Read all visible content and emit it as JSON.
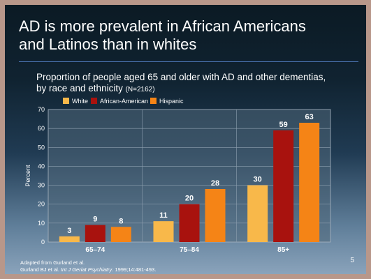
{
  "slide": {
    "title": "AD is more prevalent in African Americans\nand Latinos than in whites",
    "subtitle": "Proportion of people aged 65 and older with AD and other dementias,\nby race and ethnicity ",
    "subtitle_note": "(N=2162)",
    "footnote_1": "Adapted from Gurland et al.",
    "footnote_2_prefix": "Gurland BJ et al. ",
    "footnote_2_journal": "Int J Geriat Psychiatry",
    "footnote_2_suffix": ". 1999;14:481-493.",
    "slide_number": "5"
  },
  "chart_data": {
    "type": "bar",
    "categories": [
      "65–74",
      "75–84",
      "85+"
    ],
    "series": [
      {
        "name": "White",
        "values": [
          3,
          11,
          30
        ],
        "color": "#f8b84a"
      },
      {
        "name": "African-American",
        "values": [
          9,
          20,
          59
        ],
        "color": "#a8120e"
      },
      {
        "name": "Hispanic",
        "values": [
          8,
          28,
          63
        ],
        "color": "#f58416"
      }
    ],
    "ylabel": "Percent",
    "ylim": [
      0,
      70
    ],
    "yticks": [
      0,
      10,
      20,
      30,
      40,
      50,
      60,
      70
    ],
    "grid": true,
    "legend": "top-left",
    "data_labels": true
  }
}
